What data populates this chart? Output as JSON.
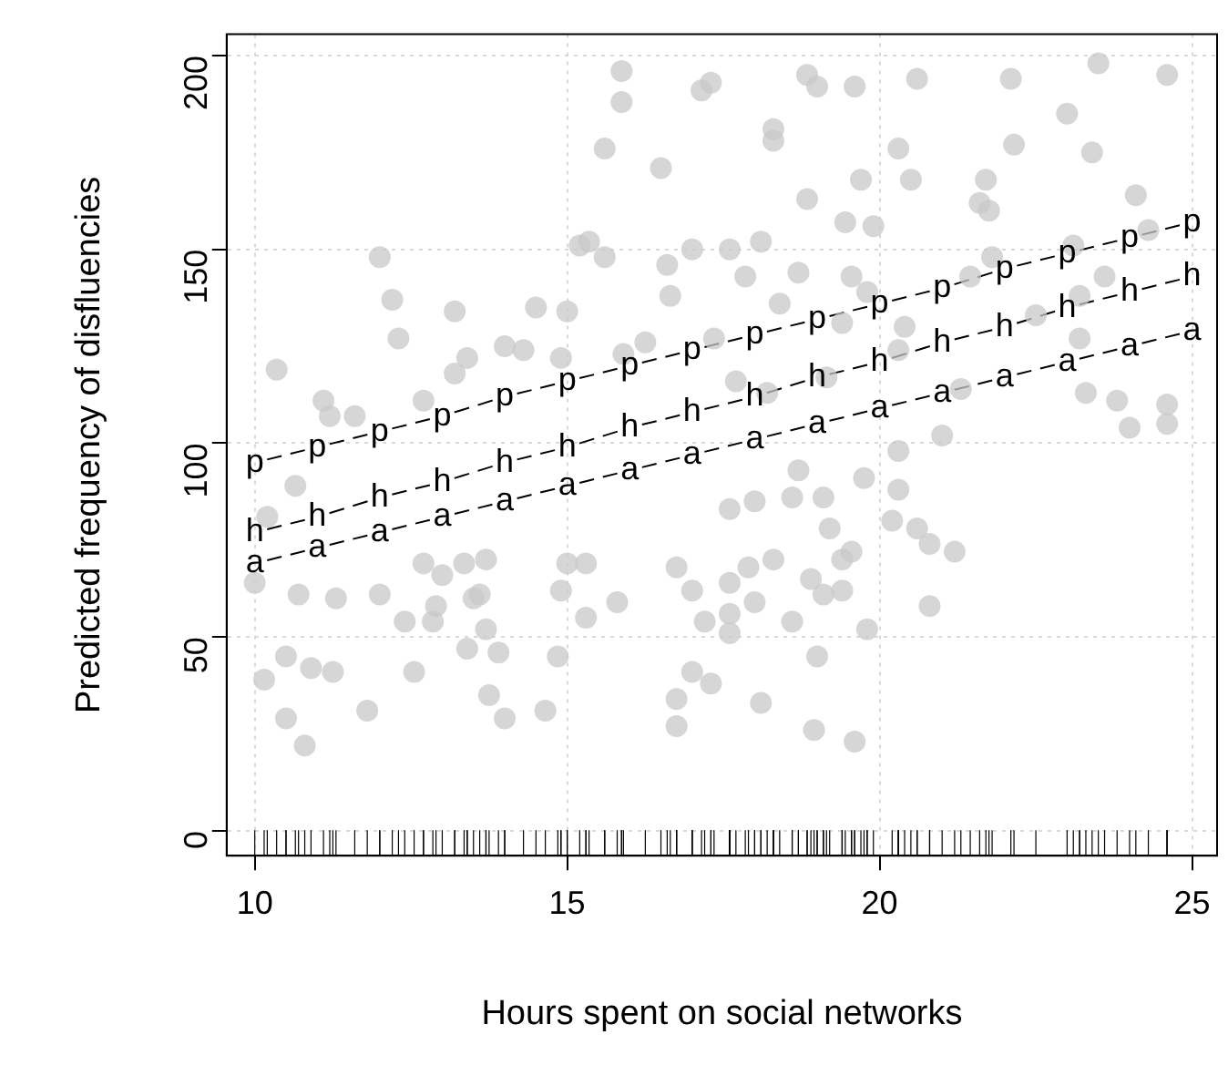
{
  "chart_data": {
    "type": "scatter",
    "xlabel": "Hours spent on social networks",
    "ylabel": "Predicted frequency of disfluencies",
    "xlim": [
      9.55,
      25.4
    ],
    "ylim": [
      -6.4,
      205.5
    ],
    "xticks": [
      10,
      15,
      20,
      25
    ],
    "yticks": [
      0,
      50,
      100,
      150,
      200
    ],
    "grid": true,
    "legend": false,
    "series": [
      {
        "color": "#c8c8c8",
        "marker": "circle",
        "x": [
          15.87,
          15.87,
          15.6,
          16.5,
          15.2,
          15.35,
          15.6,
          12.0,
          12.2,
          12.3,
          13.2,
          14.5,
          15.0,
          10.35,
          11.1,
          11.2,
          11.6,
          12.7,
          13.4,
          13.2,
          14.0,
          14.3,
          14.9,
          17.15,
          17.3,
          17.0,
          16.6,
          16.65,
          17.35,
          16.25,
          15.9,
          18.84,
          19.0,
          19.6,
          20.6,
          22.1,
          23.5,
          24.6,
          18.3,
          18.3,
          20.3,
          22.15,
          23.0,
          23.4,
          19.7,
          20.5,
          21.7,
          18.84,
          24.1,
          21.6,
          21.75,
          19.45,
          19.9,
          24.3,
          18.1,
          17.6,
          21.8,
          23.1,
          17.85,
          18.7,
          19.55,
          19.8,
          18.4,
          21.45,
          23.6,
          23.2,
          20.4,
          22.5,
          23.2,
          19.4,
          19.15,
          20.3,
          21.3,
          23.3,
          23.8,
          24.6,
          24.6,
          24.0,
          21.0,
          18.2,
          17.7,
          10.65,
          10.2,
          10.0,
          10.7,
          11.3,
          12.0,
          12.4,
          12.7,
          13.0,
          12.9,
          12.85,
          13.35,
          13.7,
          13.6,
          13.5,
          13.7,
          13.4,
          13.9,
          14.85,
          14.9,
          15.0,
          15.3,
          15.8,
          15.3,
          10.15,
          10.5,
          10.9,
          11.25,
          12.55,
          10.5,
          10.8,
          11.8,
          13.75,
          14.0,
          14.65,
          16.75,
          17.0,
          17.2,
          17.0,
          16.75,
          16.75,
          17.3,
          17.6,
          18.0,
          18.6,
          19.1,
          18.7,
          19.2,
          19.55,
          19.4,
          18.3,
          17.9,
          17.6,
          18.9,
          19.1,
          19.4,
          18.0,
          17.6,
          18.6,
          17.6,
          19.8,
          19.0,
          18.1,
          18.95,
          19.6,
          20.3,
          20.2,
          20.6,
          20.8,
          21.2,
          20.8,
          19.75,
          20.3
        ],
        "values": [
          196,
          188,
          176,
          171,
          151,
          152,
          148,
          148,
          137,
          127,
          134,
          135,
          134,
          119,
          111,
          107,
          107,
          111,
          122,
          118,
          125,
          124,
          122,
          191,
          193,
          150,
          146,
          138,
          127,
          126,
          123,
          195,
          192,
          192,
          194,
          194,
          198,
          195,
          181,
          178,
          176,
          177,
          185,
          175,
          168,
          168,
          168,
          163,
          164,
          162,
          160,
          157,
          156,
          155,
          152,
          150,
          148,
          151,
          143,
          144,
          143,
          139,
          136,
          143,
          143,
          138,
          130,
          133,
          127,
          131,
          117,
          124,
          114,
          113,
          111,
          110,
          105,
          104,
          102,
          113,
          116,
          89,
          81,
          64,
          61,
          60,
          61,
          54,
          69,
          66,
          58,
          54,
          69,
          70,
          61,
          60,
          52,
          47,
          46,
          45,
          62,
          69,
          69,
          59,
          55,
          39,
          45,
          42,
          41,
          41,
          29,
          22,
          31,
          35,
          29,
          31,
          68,
          62,
          54,
          41,
          34,
          27,
          38,
          83,
          85,
          86,
          86,
          93,
          78,
          72,
          70,
          70,
          68,
          64,
          65,
          61,
          62,
          59,
          56,
          54,
          51,
          52,
          45,
          33,
          26,
          23,
          88,
          80,
          78,
          74,
          72,
          58,
          91,
          98
        ]
      },
      {
        "type": "line",
        "name": "p",
        "color": "#000000",
        "line_style": "dashed",
        "x": [
          10,
          11,
          12,
          13,
          14,
          15,
          16,
          17,
          18,
          19,
          20,
          21,
          22,
          23,
          24,
          25
        ],
        "values": [
          95,
          99,
          103,
          107,
          112,
          116,
          120,
          124,
          128,
          132,
          136,
          140,
          145,
          149,
          153,
          157
        ]
      },
      {
        "type": "line",
        "name": "h",
        "color": "#000000",
        "line_style": "dashed",
        "x": [
          10,
          11,
          12,
          13,
          14,
          15,
          16,
          17,
          18,
          19,
          20,
          21,
          22,
          23,
          24,
          25
        ],
        "values": [
          77,
          81,
          86,
          90,
          95,
          99,
          104,
          108,
          112,
          117,
          121,
          126,
          130,
          135,
          139,
          143
        ]
      },
      {
        "type": "line",
        "name": "a",
        "color": "#000000",
        "line_style": "dashed",
        "x": [
          10,
          11,
          12,
          13,
          14,
          15,
          16,
          17,
          18,
          19,
          20,
          21,
          22,
          23,
          24,
          25
        ],
        "values": [
          69,
          73,
          77,
          81,
          85,
          89,
          93,
          97,
          101,
          105,
          109,
          113,
          117,
          121,
          125,
          129
        ]
      }
    ]
  }
}
